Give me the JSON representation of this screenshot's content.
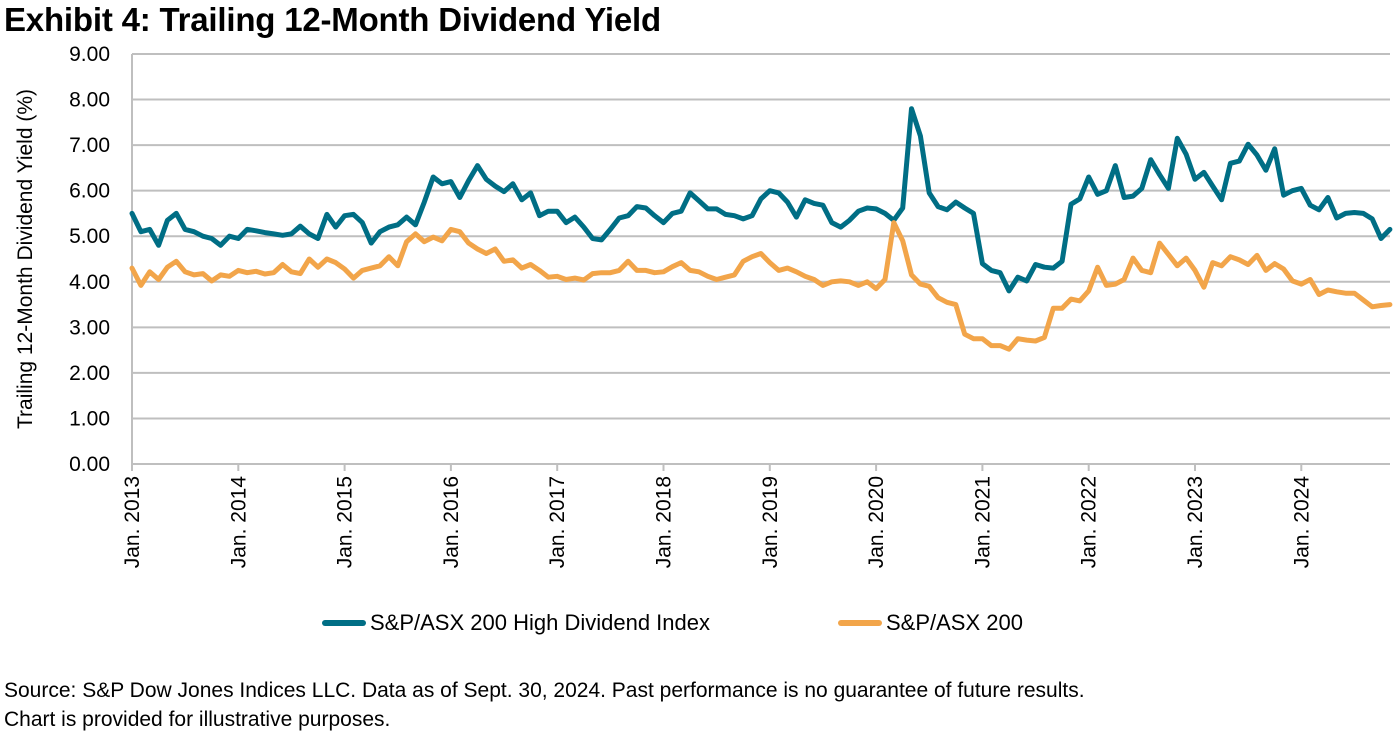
{
  "title": "Exhibit 4: Trailing 12-Month Dividend Yield",
  "footnote": {
    "line1": "Source: S&P Dow Jones Indices LLC. Data as of Sept. 30, 2024. Past performance is no guarantee of future results.",
    "line2": "Chart is provided for illustrative purposes."
  },
  "colors": {
    "high_dividend": "#006E85",
    "asx200": "#F2A54A",
    "grid": "#BFBFBF"
  },
  "chart_data": {
    "type": "line",
    "title": "Exhibit 4: Trailing 12-Month Dividend Yield",
    "xlabel": "",
    "ylabel": "Trailing 12-Month Dividend Yield (%)",
    "ylim": [
      0,
      9
    ],
    "yticks": [
      "0.00",
      "1.00",
      "2.00",
      "3.00",
      "4.00",
      "5.00",
      "6.00",
      "7.00",
      "8.00",
      "9.00"
    ],
    "xticks": [
      "Jan. 2013",
      "Jan. 2014",
      "Jan. 2015",
      "Jan. 2016",
      "Jan. 2017",
      "Jan. 2018",
      "Jan. 2019",
      "Jan. 2020",
      "Jan. 2021",
      "Jan. 2022",
      "Jan. 2023",
      "Jan. 2024"
    ],
    "x_start": "Jan. 2013",
    "x_end": "Sept. 2024",
    "frequency": "monthly",
    "grid": true,
    "legend_position": "bottom",
    "series": [
      {
        "name": "S&P/ASX 200 High Dividend Index",
        "color": "#006E85",
        "values": [
          5.5,
          5.1,
          5.15,
          4.8,
          5.35,
          5.5,
          5.15,
          5.1,
          5.0,
          4.95,
          4.8,
          5.0,
          4.95,
          5.15,
          5.12,
          5.08,
          5.05,
          5.02,
          5.05,
          5.22,
          5.05,
          4.95,
          5.48,
          5.2,
          5.45,
          5.48,
          5.3,
          4.85,
          5.1,
          5.2,
          5.25,
          5.42,
          5.25,
          5.75,
          6.3,
          6.15,
          6.2,
          5.85,
          6.22,
          6.55,
          6.25,
          6.1,
          5.98,
          6.15,
          5.8,
          5.95,
          5.45,
          5.55,
          5.55,
          5.3,
          5.42,
          5.2,
          4.95,
          4.92,
          5.15,
          5.4,
          5.45,
          5.65,
          5.62,
          5.45,
          5.3,
          5.5,
          5.55,
          5.95,
          5.78,
          5.6,
          5.6,
          5.48,
          5.45,
          5.38,
          5.45,
          5.82,
          6.0,
          5.95,
          5.75,
          5.42,
          5.8,
          5.72,
          5.68,
          5.3,
          5.2,
          5.35,
          5.55,
          5.62,
          5.6,
          5.5,
          5.35,
          5.62,
          7.8,
          7.2,
          5.95,
          5.65,
          5.58,
          5.75,
          5.62,
          5.5,
          4.4,
          4.25,
          4.2,
          3.8,
          4.1,
          4.02,
          4.38,
          4.32,
          4.3,
          4.45,
          5.7,
          5.82,
          6.3,
          5.92,
          6.0,
          6.55,
          5.85,
          5.88,
          6.05,
          6.68,
          6.35,
          6.05,
          7.15,
          6.8,
          6.25,
          6.4,
          6.1,
          5.8,
          6.6,
          6.65,
          7.02,
          6.78,
          6.45,
          6.92,
          5.9,
          6.0,
          6.05,
          5.68,
          5.58,
          5.85,
          5.4,
          5.5,
          5.52,
          5.5,
          5.38,
          4.95,
          5.15
        ]
      },
      {
        "name": "S&P/ASX 200",
        "color": "#F2A54A",
        "values": [
          4.3,
          3.92,
          4.22,
          4.05,
          4.32,
          4.45,
          4.22,
          4.15,
          4.18,
          4.02,
          4.15,
          4.12,
          4.25,
          4.2,
          4.23,
          4.17,
          4.2,
          4.38,
          4.22,
          4.18,
          4.5,
          4.32,
          4.5,
          4.42,
          4.28,
          4.08,
          4.25,
          4.3,
          4.35,
          4.55,
          4.35,
          4.88,
          5.05,
          4.88,
          4.98,
          4.9,
          5.15,
          5.1,
          4.85,
          4.72,
          4.62,
          4.72,
          4.45,
          4.48,
          4.3,
          4.38,
          4.25,
          4.1,
          4.12,
          4.05,
          4.08,
          4.04,
          4.18,
          4.2,
          4.2,
          4.25,
          4.45,
          4.25,
          4.25,
          4.2,
          4.22,
          4.33,
          4.42,
          4.25,
          4.22,
          4.12,
          4.05,
          4.1,
          4.15,
          4.45,
          4.55,
          4.62,
          4.42,
          4.25,
          4.3,
          4.22,
          4.12,
          4.05,
          3.92,
          4.0,
          4.02,
          4.0,
          3.92,
          4.0,
          3.85,
          4.05,
          5.3,
          4.9,
          4.15,
          3.95,
          3.9,
          3.65,
          3.55,
          3.5,
          2.85,
          2.75,
          2.75,
          2.6,
          2.6,
          2.52,
          2.75,
          2.72,
          2.7,
          2.78,
          3.42,
          3.42,
          3.62,
          3.58,
          3.8,
          4.32,
          3.92,
          3.95,
          4.05,
          4.52,
          4.25,
          4.2,
          4.85,
          4.6,
          4.35,
          4.52,
          4.25,
          3.88,
          4.42,
          4.35,
          4.55,
          4.48,
          4.38,
          4.58,
          4.25,
          4.4,
          4.28,
          4.02,
          3.95,
          4.05,
          3.72,
          3.82,
          3.78,
          3.75,
          3.75,
          3.6,
          3.45,
          3.48,
          3.5
        ]
      }
    ]
  }
}
